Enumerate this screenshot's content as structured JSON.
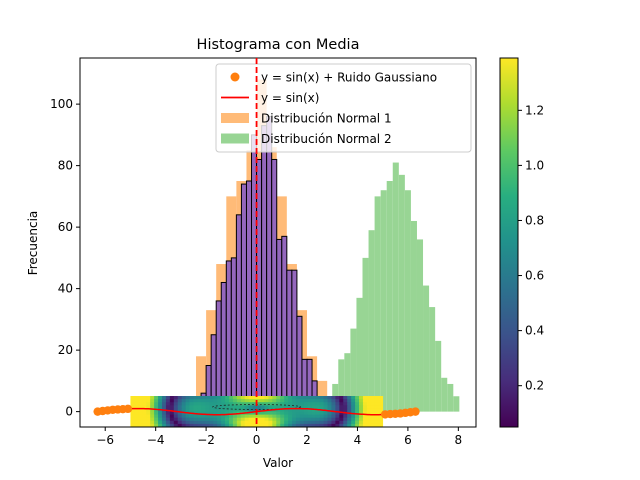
{
  "chart_data": {
    "type": "histogram",
    "title": "Histograma con Media",
    "xlabel": "Valor",
    "ylabel": "Frecuencia",
    "xlim": [
      -7,
      8.7
    ],
    "ylim": [
      -5,
      115
    ],
    "xticks": [
      -6,
      -4,
      -2,
      0,
      2,
      4,
      6,
      8
    ],
    "yticks": [
      0,
      20,
      40,
      60,
      80,
      100
    ],
    "legend_position": "top-right",
    "legend": [
      {
        "label": "y = sin(x) + Ruido Gaussiano",
        "kind": "marker",
        "color": "#ff7f0e"
      },
      {
        "label": "y = sin(x)",
        "kind": "line",
        "color": "#ff0000"
      },
      {
        "label": "Distribución Normal 1",
        "kind": "patch",
        "color": "#ffbb78"
      },
      {
        "label": "Distribución Normal 2",
        "kind": "patch",
        "color": "#98d594"
      }
    ],
    "series": [
      {
        "name": "Distribución Normal 2",
        "type": "histogram",
        "color": "#98d594",
        "bin_edges": [
          3.0,
          3.24,
          3.48,
          3.72,
          3.96,
          4.2,
          4.44,
          4.68,
          4.92,
          5.16,
          5.4,
          5.64,
          5.88,
          6.12,
          6.36,
          6.6,
          6.84,
          7.08,
          7.32,
          7.56,
          7.8,
          8.04
        ],
        "counts": [
          9,
          17,
          19,
          27,
          37,
          50,
          59,
          70,
          72,
          75,
          81,
          77,
          72,
          62,
          56,
          41,
          34,
          23,
          11,
          9,
          5
        ]
      },
      {
        "name": "Distribución Normal 1",
        "type": "histogram",
        "color": "#ffbb78",
        "bin_edges": [
          -2.4,
          -2.0,
          -1.6,
          -1.2,
          -0.8,
          -0.4,
          0.0,
          0.4,
          0.8,
          1.2,
          1.6,
          2.0,
          2.4,
          2.8
        ],
        "counts": [
          18,
          33,
          48,
          70,
          75,
          85,
          108,
          86,
          70,
          48,
          33,
          18,
          10
        ]
      },
      {
        "name": "",
        "type": "histogram",
        "color": "#9467bd",
        "edgecolor": "#000000",
        "bin_edges": [
          -2.2,
          -2.0,
          -1.8,
          -1.6,
          -1.4,
          -1.2,
          -1.0,
          -0.8,
          -0.6,
          -0.4,
          -0.2,
          0.0,
          0.2,
          0.4,
          0.6,
          0.8,
          1.0,
          1.2,
          1.4,
          1.6,
          1.8,
          2.0,
          2.2,
          2.4,
          2.6,
          2.8,
          3.0
        ],
        "counts": [
          6,
          15,
          25,
          36,
          42,
          49,
          50,
          64,
          74,
          75,
          90,
          82,
          93,
          96,
          82,
          56,
          57,
          46,
          46,
          31,
          17,
          17,
          10,
          2,
          3,
          0
        ]
      },
      {
        "name": "y = sin(x) + Ruido Gaussiano",
        "type": "scatter",
        "color": "#ff7f0e",
        "x": [
          -6.3,
          -6.1,
          -5.9,
          -5.7,
          -5.5,
          -5.3,
          -5.1,
          5.1,
          5.3,
          5.5,
          5.7,
          5.9,
          6.1,
          6.3
        ],
        "y": [
          0.0,
          0.2,
          0.4,
          0.6,
          0.7,
          0.8,
          0.9,
          -0.9,
          -0.8,
          -0.7,
          -0.6,
          -0.4,
          -0.2,
          0.0
        ]
      },
      {
        "name": "y = sin(x)",
        "type": "line",
        "color": "#ff0000",
        "x": [
          -6.3,
          -5.5,
          -4.7,
          -3.9,
          -3.1,
          -2.4,
          -1.6,
          -0.8,
          0.0,
          0.8,
          1.6,
          2.4,
          3.1,
          3.9,
          4.7,
          5.5,
          6.3
        ],
        "y": [
          0.0,
          0.7,
          1.0,
          0.7,
          0.0,
          -0.7,
          -1.0,
          -0.7,
          0.0,
          0.7,
          1.0,
          0.7,
          0.0,
          -0.7,
          -1.0,
          -0.7,
          0.0
        ]
      }
    ],
    "mean_line": {
      "x": 0.0,
      "color": "#ff0000",
      "style": "dashed"
    },
    "heatmap": {
      "colormap": "viridis",
      "x_range": [
        -5,
        5
      ],
      "y_range": [
        -5,
        5
      ]
    },
    "colorbar": {
      "colormap": "viridis",
      "range": [
        0.05,
        1.39
      ],
      "ticks": [
        0.2,
        0.4,
        0.6,
        0.8,
        1.0,
        1.2
      ],
      "tick_labels": [
        "0.2",
        "0.4",
        "0.6",
        "0.8",
        "1.0",
        "1.2"
      ]
    }
  }
}
